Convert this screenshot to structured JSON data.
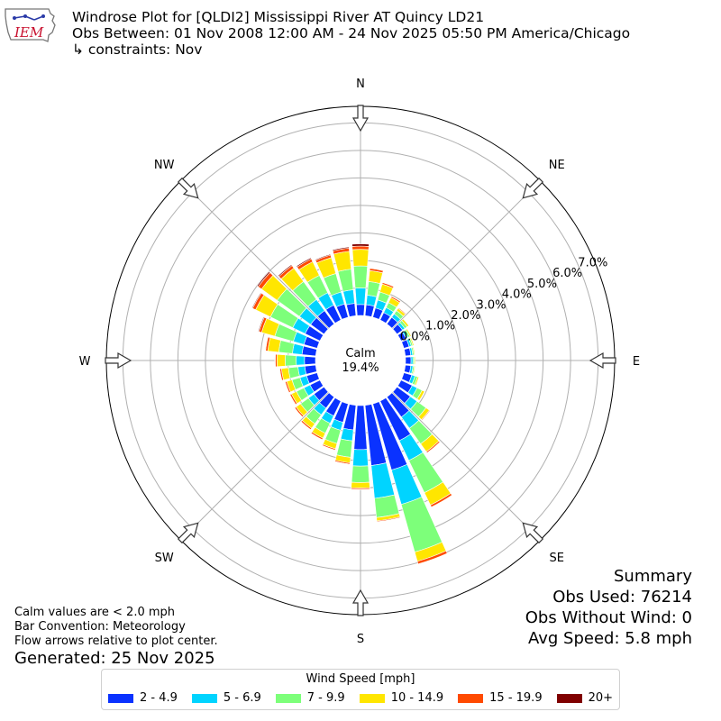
{
  "header": {
    "title": "Windrose Plot for [QLDI2] Mississippi River  AT Quincy LD21",
    "obs_between": "Obs Between: 01 Nov 2008 12:00 AM - 24 Nov 2025 05:50 PM America/Chicago",
    "constraints": "↳ constraints: Nov"
  },
  "logo": {
    "text": "IEM",
    "color": "#c8102e"
  },
  "summary": {
    "title": "Summary",
    "obs_used": "Obs Used: 76214",
    "obs_without_wind": "Obs Without Wind: 0",
    "avg_speed": "Avg Speed: 5.8 mph"
  },
  "notes": {
    "calm": "Calm values are < 2.0 mph",
    "bar_convention": "Bar Convention: Meteorology",
    "flow_arrows": "Flow arrows relative to plot center.",
    "generated": "Generated: 25 Nov 2025"
  },
  "legend": {
    "title": "Wind Speed [mph]",
    "items": [
      {
        "label": "2 - 4.9",
        "color": "#0a32ff"
      },
      {
        "label": "5 - 6.9",
        "color": "#00d4ff"
      },
      {
        "label": "7 - 9.9",
        "color": "#7dff7a"
      },
      {
        "label": "10 - 14.9",
        "color": "#ffe600"
      },
      {
        "label": "15 - 19.9",
        "color": "#ff4a00"
      },
      {
        "label": "20+",
        "color": "#800000"
      }
    ]
  },
  "chart_data": {
    "type": "windrose",
    "calm_label": "Calm",
    "calm_value": "19.4%",
    "directions": [
      "N",
      "NE",
      "E",
      "SE",
      "S",
      "SW",
      "W",
      "NW"
    ],
    "radial_ticks": [
      "0.0%",
      "1.0%",
      "2.0%",
      "3.0%",
      "4.0%",
      "5.0%",
      "6.0%",
      "7.0%"
    ],
    "r_max": 7.0,
    "bin_width_deg": 10,
    "sector_centers_deg": [
      0,
      10,
      20,
      30,
      40,
      50,
      60,
      70,
      80,
      90,
      100,
      110,
      120,
      130,
      140,
      150,
      160,
      170,
      180,
      190,
      200,
      210,
      220,
      230,
      240,
      250,
      260,
      270,
      280,
      290,
      300,
      310,
      320,
      330,
      340,
      350
    ],
    "bins": [
      "2 - 4.9",
      "5 - 6.9",
      "7 - 9.9",
      "10 - 14.9",
      "15 - 19.9",
      "20+"
    ],
    "sectors": [
      [
        0.4,
        0.6,
        0.8,
        0.6,
        0.12,
        0.08
      ],
      [
        0.4,
        0.35,
        0.5,
        0.4,
        0.08,
        0.02
      ],
      [
        0.35,
        0.3,
        0.3,
        0.3,
        0.06,
        0.01
      ],
      [
        0.3,
        0.2,
        0.2,
        0.2,
        0.05,
        0.0
      ],
      [
        0.3,
        0.15,
        0.15,
        0.1,
        0.03,
        0.0
      ],
      [
        0.25,
        0.1,
        0.1,
        0.08,
        0.02,
        0.0
      ],
      [
        0.2,
        0.08,
        0.08,
        0.05,
        0.01,
        0.0
      ],
      [
        0.2,
        0.08,
        0.06,
        0.04,
        0.0,
        0.0
      ],
      [
        0.2,
        0.07,
        0.05,
        0.03,
        0.0,
        0.0
      ],
      [
        0.2,
        0.07,
        0.05,
        0.03,
        0.0,
        0.0
      ],
      [
        0.2,
        0.08,
        0.05,
        0.03,
        0.0,
        0.0
      ],
      [
        0.3,
        0.12,
        0.1,
        0.05,
        0.01,
        0.0
      ],
      [
        0.45,
        0.2,
        0.2,
        0.1,
        0.02,
        0.0
      ],
      [
        0.6,
        0.3,
        0.4,
        0.15,
        0.03,
        0.0
      ],
      [
        0.9,
        0.5,
        0.7,
        0.35,
        0.05,
        0.0
      ],
      [
        1.6,
        0.8,
        1.3,
        0.5,
        0.08,
        0.0
      ],
      [
        2.5,
        1.3,
        1.8,
        0.35,
        0.1,
        0.0
      ],
      [
        2.2,
        1.2,
        0.7,
        0.12,
        0.03,
        0.0
      ],
      [
        1.6,
        0.6,
        0.6,
        0.2,
        0.05,
        0.01
      ],
      [
        0.9,
        0.4,
        0.6,
        0.2,
        0.05,
        0.01
      ],
      [
        0.7,
        0.3,
        0.5,
        0.2,
        0.05,
        0.02
      ],
      [
        0.6,
        0.3,
        0.4,
        0.2,
        0.06,
        0.02
      ],
      [
        0.5,
        0.3,
        0.4,
        0.2,
        0.06,
        0.02
      ],
      [
        0.45,
        0.25,
        0.35,
        0.2,
        0.06,
        0.02
      ],
      [
        0.4,
        0.25,
        0.3,
        0.2,
        0.06,
        0.02
      ],
      [
        0.4,
        0.25,
        0.3,
        0.2,
        0.06,
        0.02
      ],
      [
        0.4,
        0.25,
        0.35,
        0.25,
        0.06,
        0.02
      ],
      [
        0.4,
        0.3,
        0.4,
        0.3,
        0.06,
        0.02
      ],
      [
        0.5,
        0.35,
        0.5,
        0.4,
        0.08,
        0.02
      ],
      [
        0.5,
        0.4,
        0.7,
        0.5,
        0.1,
        0.03
      ],
      [
        0.6,
        0.5,
        0.9,
        0.6,
        0.12,
        0.03
      ],
      [
        0.6,
        0.5,
        1.0,
        0.7,
        0.15,
        0.05
      ],
      [
        0.6,
        0.5,
        0.8,
        0.6,
        0.12,
        0.04
      ],
      [
        0.6,
        0.5,
        0.7,
        0.55,
        0.12,
        0.04
      ],
      [
        0.5,
        0.45,
        0.7,
        0.6,
        0.1,
        0.03
      ],
      [
        0.45,
        0.5,
        0.75,
        0.65,
        0.12,
        0.04
      ]
    ]
  }
}
